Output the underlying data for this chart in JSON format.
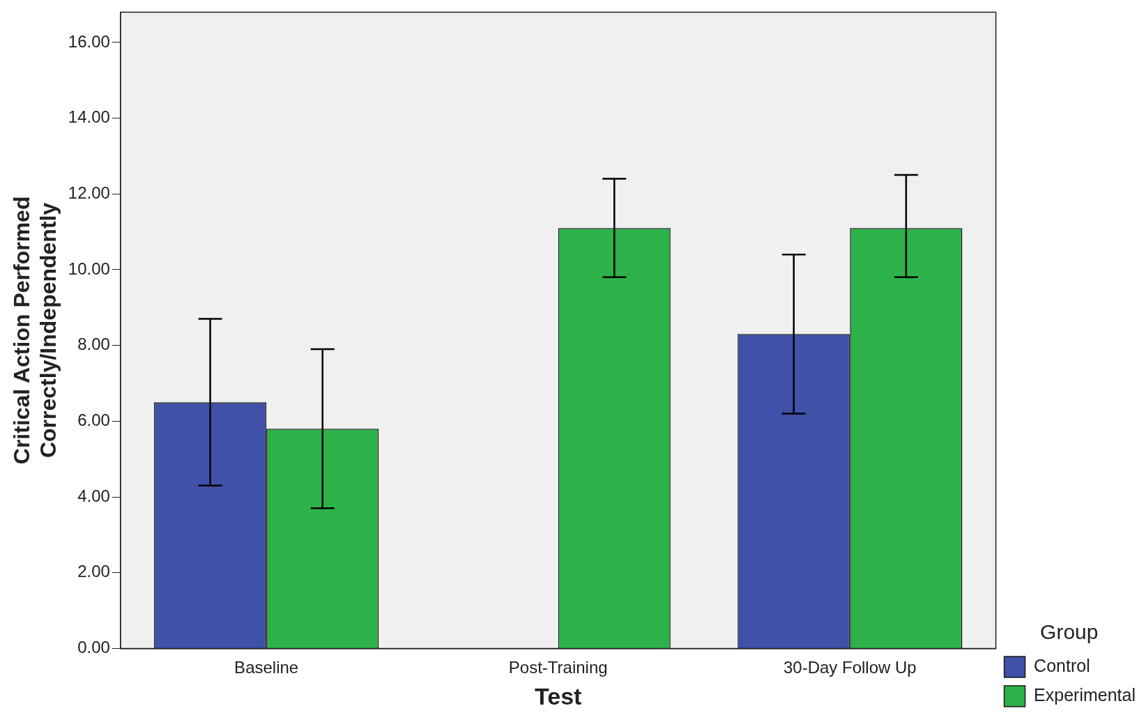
{
  "chart_data": {
    "type": "bar",
    "categories": [
      "Baseline",
      "Post-Training",
      "30-Day Follow Up"
    ],
    "xlabel": "Test",
    "ylabel": "Critical Action Performed\nCorrectly/Independently",
    "legend_title": "Group",
    "legend": "bottom right",
    "ylim": [
      0,
      16.8
    ],
    "yticks": [
      {
        "value": 0,
        "label": "0.00"
      },
      {
        "value": 2,
        "label": "2.00"
      },
      {
        "value": 4,
        "label": "4.00"
      },
      {
        "value": 6,
        "label": "6.00"
      },
      {
        "value": 8,
        "label": "8.00"
      },
      {
        "value": 10,
        "label": "10.00"
      },
      {
        "value": 12,
        "label": "12.00"
      },
      {
        "value": 14,
        "label": "14.00"
      },
      {
        "value": 16,
        "label": "16.00"
      }
    ],
    "series": [
      {
        "name": "Control",
        "color": "#3f51a8",
        "values": [
          6.5,
          null,
          8.3
        ],
        "errors": [
          [
            4.3,
            8.7
          ],
          null,
          [
            6.2,
            10.4
          ]
        ]
      },
      {
        "name": "Experimental",
        "color": "#2db24a",
        "values": [
          5.8,
          11.1,
          11.1
        ],
        "errors": [
          [
            3.7,
            7.9
          ],
          [
            9.8,
            12.4
          ],
          [
            9.8,
            12.5
          ]
        ]
      }
    ]
  }
}
